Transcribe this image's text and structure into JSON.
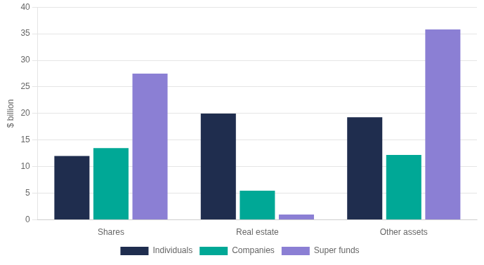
{
  "chart_data": {
    "type": "bar",
    "categories": [
      "Shares",
      "Real estate",
      "Other assets"
    ],
    "series": [
      {
        "name": "Individuals",
        "color": "#1f2d4e",
        "values": [
          12,
          20,
          19.3
        ]
      },
      {
        "name": "Companies",
        "color": "#00a896",
        "values": [
          13.5,
          5.5,
          12.2
        ]
      },
      {
        "name": "Super funds",
        "color": "#8b7fd4",
        "values": [
          27.5,
          1.0,
          35.8
        ]
      }
    ],
    "ylabel": "$ billion",
    "ylim": [
      0,
      40
    ],
    "yticks": [
      0,
      5,
      10,
      15,
      20,
      25,
      30,
      35,
      40
    ],
    "grid": true,
    "legend": "bottom"
  }
}
